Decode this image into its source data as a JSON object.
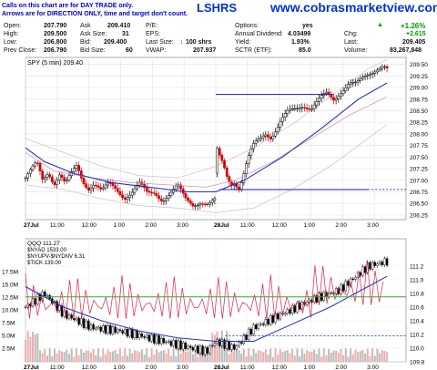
{
  "banner": {
    "line1": "Calls on this chart are for DAY TRADE only.",
    "line2": "Arrows are for DIRECTION ONLY, time and target don't count.",
    "watermark": "www.cobrasmarketview.com",
    "title_fragment": "LSHRS"
  },
  "quote": {
    "col1": [
      {
        "label": "Open:",
        "value": "207.790"
      },
      {
        "label": "High:",
        "value": "209.500"
      },
      {
        "label": "Low:",
        "value": "206.800"
      },
      {
        "label": "Prev Close:",
        "value": "206.790"
      }
    ],
    "col2": [
      {
        "label": "Ask Size:",
        "value": "31"
      },
      {
        "label": "Bid:",
        "value": "209.400"
      },
      {
        "label": "Bid Size:",
        "value": "60"
      }
    ],
    "col2_top": {
      "label": "Ask",
      "value": "209.410"
    },
    "col3": [
      {
        "label": "P/E:",
        "value": ""
      },
      {
        "label": "EPS:",
        "value": ""
      },
      {
        "label": "Last Size:",
        "value": "100 shrs"
      },
      {
        "label": "VWAP:",
        "value": "207.937"
      }
    ],
    "col4": [
      {
        "label": "Options:",
        "value": "yes"
      },
      {
        "label": "Annual Dividend:",
        "value": "4.03499"
      },
      {
        "label": "Yield:",
        "value": "1.93%"
      },
      {
        "label": "SCTR (ETF):",
        "value": "85.0"
      }
    ],
    "col5": [
      {
        "label": "",
        "value": "+1.26%"
      },
      {
        "label": "Chg:",
        "value": "+2.615"
      },
      {
        "label": "Last:",
        "value": "209.405"
      },
      {
        "label": "Volume:",
        "value": "83,267,848"
      }
    ],
    "colors": {
      "up": "#009900",
      "down": "#cc0000",
      "banner_text": "#0000cc",
      "watermark": "#0033cc",
      "title": "#0033cc"
    }
  },
  "chart_data": [
    {
      "type": "candlestick",
      "title": "SPY (5 min) 209.40",
      "ylim": [
        206.15,
        209.65
      ],
      "yticks": [
        "209.50",
        "209.25",
        "209.00",
        "208.75",
        "208.50",
        "208.25",
        "208.00",
        "207.75",
        "207.50",
        "207.25",
        "207.00",
        "206.75",
        "206.50",
        "206.25"
      ],
      "xticks": [
        "27Jul",
        "11:00",
        "12:00",
        "1:00",
        "2:00",
        "3:00",
        "28Jul",
        "11:00",
        "12:00",
        "1:00",
        "2:00",
        "3:00"
      ],
      "hlines": [
        {
          "y": 208.85,
          "from_session": 2,
          "color": "#0000aa"
        },
        {
          "y": 206.8,
          "from_session": 2,
          "color": "#0000aa",
          "dashed_after": true
        }
      ],
      "close_path": [
        [
          0,
          207.05
        ],
        [
          0.03,
          207.2
        ],
        [
          0.06,
          207.35
        ],
        [
          0.09,
          207.0
        ],
        [
          0.12,
          207.2
        ],
        [
          0.15,
          206.95
        ],
        [
          0.18,
          207.15
        ],
        [
          0.21,
          206.9
        ],
        [
          0.24,
          207.1
        ],
        [
          0.27,
          207.3
        ],
        [
          0.3,
          207.0
        ],
        [
          0.33,
          206.85
        ],
        [
          0.36,
          206.95
        ],
        [
          0.4,
          206.75
        ],
        [
          0.44,
          206.9
        ],
        [
          0.48,
          206.8
        ],
        [
          0.52,
          206.65
        ],
        [
          0.56,
          206.75
        ],
        [
          0.6,
          206.9
        ],
        [
          0.64,
          206.7
        ],
        [
          0.68,
          206.75
        ],
        [
          0.72,
          206.6
        ],
        [
          0.76,
          206.7
        ],
        [
          0.8,
          206.85
        ],
        [
          0.84,
          206.6
        ],
        [
          0.88,
          206.5
        ],
        [
          0.92,
          206.55
        ],
        [
          0.96,
          206.45
        ],
        [
          1.0,
          206.55
        ],
        [
          1.0,
          207.7
        ],
        [
          1.02,
          207.5
        ],
        [
          1.04,
          207.35
        ],
        [
          1.06,
          207.1
        ],
        [
          1.08,
          206.95
        ],
        [
          1.1,
          207.0
        ],
        [
          1.12,
          206.8
        ],
        [
          1.14,
          207.0
        ],
        [
          1.16,
          207.3
        ],
        [
          1.18,
          207.55
        ],
        [
          1.2,
          207.75
        ],
        [
          1.23,
          207.9
        ],
        [
          1.26,
          208.05
        ],
        [
          1.29,
          207.95
        ],
        [
          1.32,
          208.1
        ],
        [
          1.35,
          208.3
        ],
        [
          1.38,
          208.45
        ],
        [
          1.42,
          208.55
        ],
        [
          1.46,
          208.65
        ],
        [
          1.5,
          208.55
        ],
        [
          1.54,
          208.7
        ],
        [
          1.58,
          208.85
        ],
        [
          1.62,
          208.75
        ],
        [
          1.66,
          208.95
        ],
        [
          1.7,
          209.1
        ],
        [
          1.74,
          209.05
        ],
        [
          1.78,
          209.2
        ],
        [
          1.82,
          209.35
        ],
        [
          1.85,
          209.45
        ],
        [
          1.88,
          209.5
        ],
        [
          1.9,
          209.4
        ]
      ],
      "ma_blue": [
        [
          0,
          207.7
        ],
        [
          0.1,
          207.4
        ],
        [
          0.25,
          207.15
        ],
        [
          0.45,
          206.95
        ],
        [
          0.65,
          206.85
        ],
        [
          0.85,
          206.75
        ],
        [
          1.0,
          206.75
        ],
        [
          1.15,
          207.0
        ],
        [
          1.35,
          207.5
        ],
        [
          1.55,
          208.1
        ],
        [
          1.75,
          208.75
        ],
        [
          1.9,
          209.1
        ]
      ],
      "ma_pink": [
        [
          0,
          207.6
        ],
        [
          0.15,
          207.2
        ],
        [
          0.35,
          207.05
        ],
        [
          0.55,
          206.95
        ],
        [
          0.75,
          206.9
        ],
        [
          0.95,
          206.85
        ],
        [
          1.1,
          207.0
        ],
        [
          1.3,
          207.4
        ],
        [
          1.5,
          207.9
        ],
        [
          1.7,
          208.4
        ],
        [
          1.9,
          208.8
        ]
      ],
      "band_upper": [
        [
          0,
          207.9
        ],
        [
          0.2,
          207.6
        ],
        [
          0.4,
          207.3
        ],
        [
          0.6,
          207.1
        ],
        [
          0.8,
          207.05
        ],
        [
          1.0,
          207.3
        ],
        [
          1.2,
          207.7
        ],
        [
          1.4,
          208.2
        ],
        [
          1.6,
          208.8
        ],
        [
          1.8,
          209.4
        ],
        [
          1.9,
          209.6
        ]
      ],
      "band_lower": [
        [
          0,
          206.9
        ],
        [
          0.2,
          206.8
        ],
        [
          0.4,
          206.6
        ],
        [
          0.6,
          206.45
        ],
        [
          0.8,
          206.4
        ],
        [
          1.0,
          206.3
        ],
        [
          1.2,
          206.4
        ],
        [
          1.4,
          206.8
        ],
        [
          1.6,
          207.3
        ],
        [
          1.8,
          207.9
        ],
        [
          1.9,
          208.2
        ]
      ]
    },
    {
      "type": "bar-and-line",
      "title": "QQQ 111.27",
      "legend": [
        "$NYAD 1533.00",
        "$NYUPV-$NYDNV 6.31",
        "$TICK 139.00"
      ],
      "ylim_right": [
        109.8,
        111.6
      ],
      "yticks_right": [
        "111.2",
        "111.0",
        "110.8",
        "110.6",
        "110.4",
        "110.2",
        "110.0",
        "109.8"
      ],
      "yticks_left": [
        "17.5M",
        "15.0M",
        "12.5M",
        "10.0M",
        "7.5M",
        "5.0M",
        "2.5M"
      ],
      "xticks": [
        "27Jul",
        "11:00",
        "12:00",
        "1:00",
        "2:00",
        "3:00",
        "28Jul",
        "11:00",
        "12:00",
        "1:00",
        "2:00",
        "3:00"
      ],
      "hlines": [
        {
          "y": 110.75,
          "color": "#33aa33"
        },
        {
          "y": 110.18,
          "color": "#0000aa",
          "dashed": true
        }
      ]
    }
  ]
}
